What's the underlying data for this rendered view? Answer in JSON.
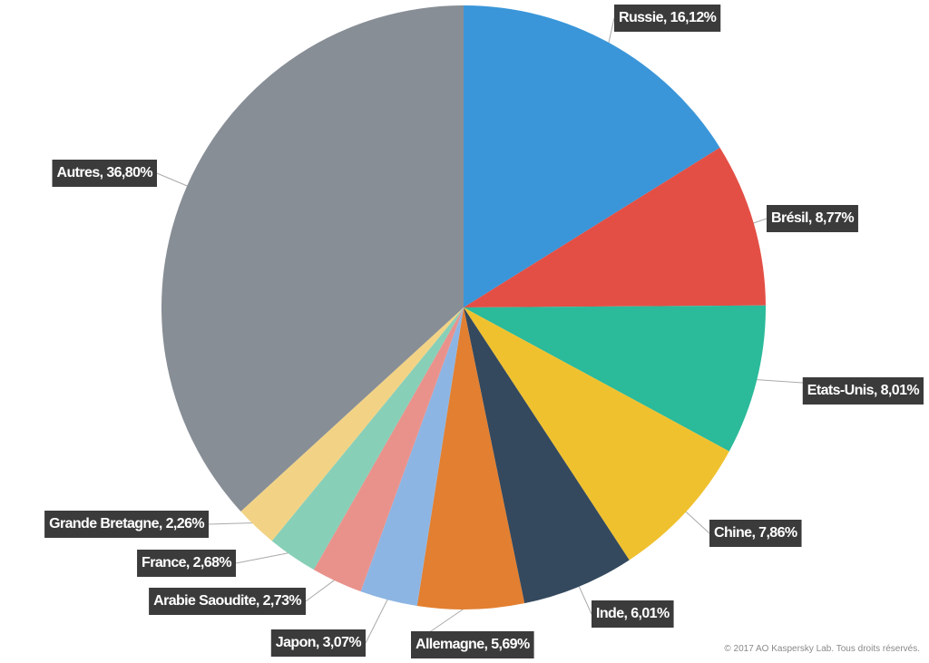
{
  "chart_data": {
    "type": "pie",
    "categories": [
      "Russie",
      "Brésil",
      "Etats-Unis",
      "Chine",
      "Inde",
      "Allemagne",
      "Japon",
      "Arabie Saoudite",
      "France",
      "Grande Bretagne",
      "Autres"
    ],
    "values": [
      16.12,
      8.77,
      8.01,
      7.86,
      6.01,
      5.69,
      3.07,
      2.73,
      2.68,
      2.26,
      36.8
    ],
    "value_labels": [
      "16,12%",
      "8,77%",
      "8,01%",
      "7,86%",
      "6,01%",
      "5,69%",
      "3,07%",
      "2,73%",
      "2,68%",
      "2,26%",
      "36,80%"
    ],
    "label_separator": ", ",
    "colors": [
      "#3a96d9",
      "#e34f45",
      "#2bba9a",
      "#f0c12f",
      "#34495e",
      "#e27f30",
      "#8db5e3",
      "#e9928c",
      "#88cfb8",
      "#f2d385",
      "#888e96"
    ],
    "credit": "© 2017 AO Kaspersky Lab. Tous droits réservés."
  }
}
